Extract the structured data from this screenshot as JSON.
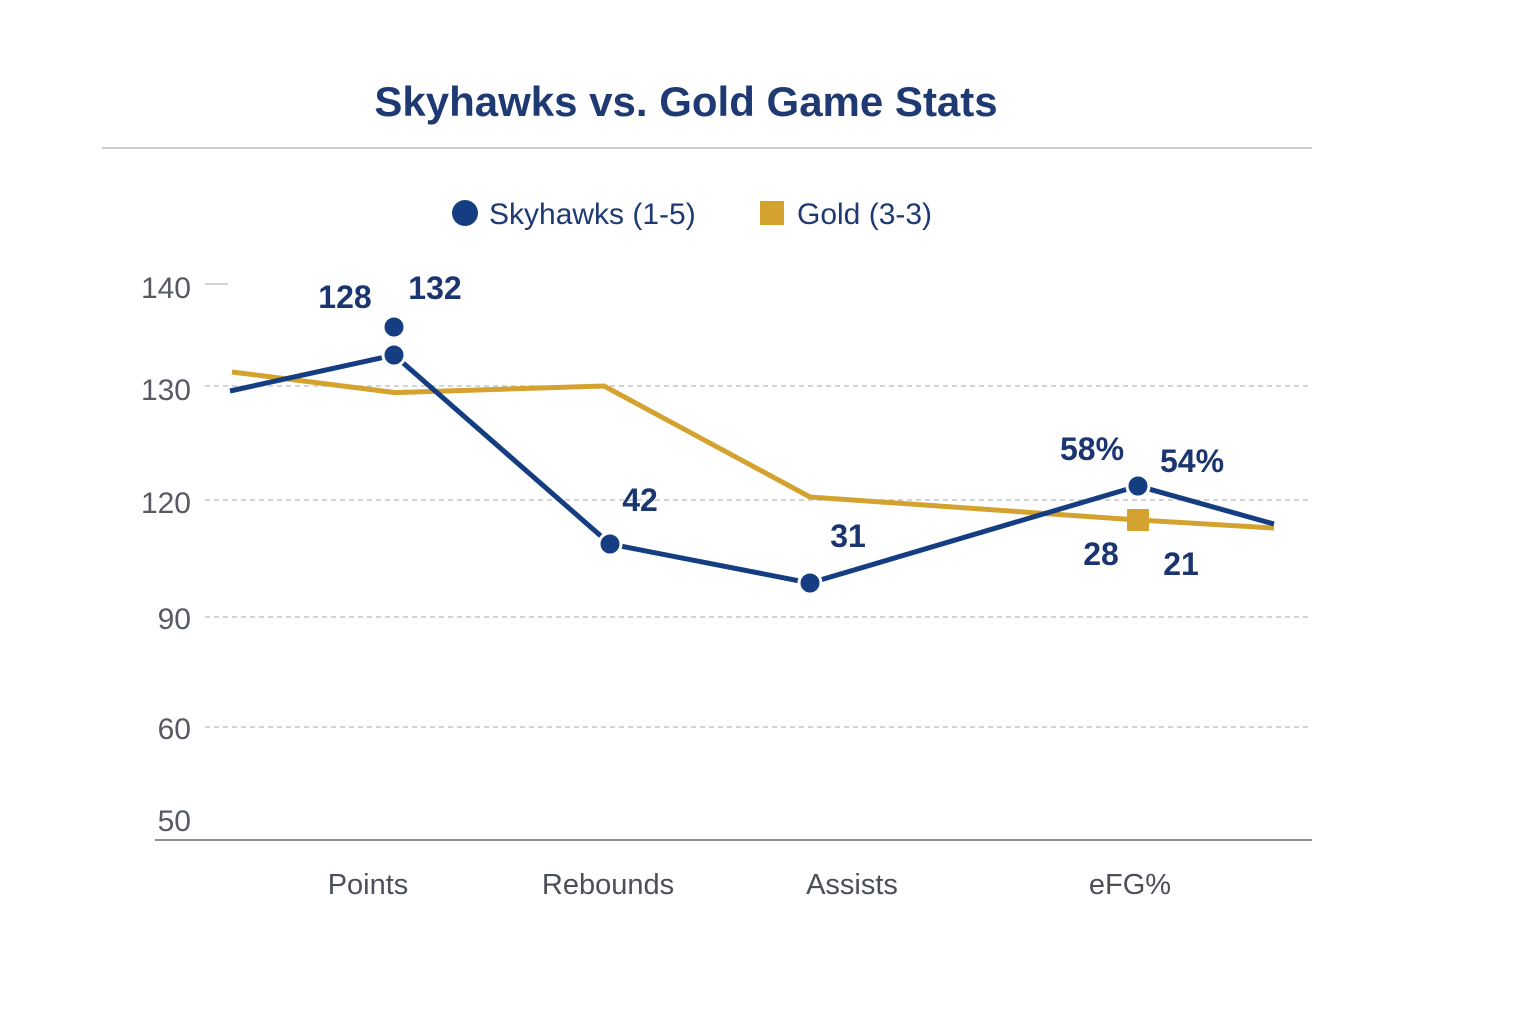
{
  "chart_data": {
    "type": "line",
    "title": "Skyhawks vs. Gold Game Stats",
    "xlabel": "",
    "ylabel": "",
    "categories": [
      "Points",
      "Rebounds",
      "Assists",
      "eFG%"
    ],
    "y_ticks": [
      "140",
      "130",
      "120",
      "90",
      "60",
      "50"
    ],
    "grid": true,
    "legend": "top-center",
    "series": [
      {
        "name": "Skyhawks (1-5)",
        "color": "#143d82",
        "marker": "circle",
        "values": [
          128,
          42,
          31,
          58
        ],
        "labels": [
          "128",
          "42",
          "31",
          "58%"
        ]
      },
      {
        "name": "Gold (3-3)",
        "color": "#d4a22e",
        "marker": "square",
        "values": [
          132,
          130,
          120,
          21
        ],
        "labels": [
          "132",
          "",
          "",
          "21"
        ]
      }
    ],
    "annotations": [
      "54%",
      "28"
    ]
  }
}
